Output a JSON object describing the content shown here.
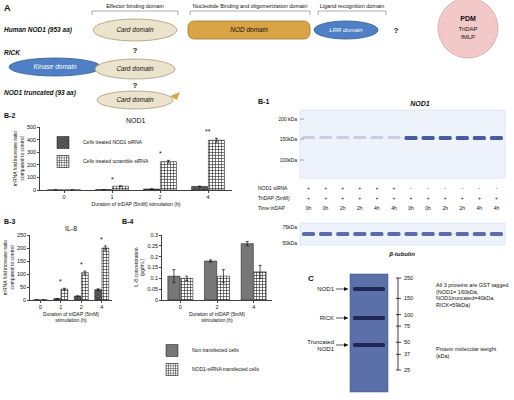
{
  "panel_labels": {
    "a": "A",
    "b1": "B-1",
    "b2": "B-2",
    "b3": "B-3",
    "b4": "B-4",
    "c": "C"
  },
  "diagram": {
    "headers": [
      "Effector binding domain",
      "Nucleotide Binding and oligomerization domain",
      "Ligand recognition domain"
    ],
    "rows": [
      {
        "label": "Human NOD1 (953 aa)",
        "domains": [
          "Card domain",
          "NOD domain",
          "LRR domain"
        ]
      },
      {
        "label": "RICK",
        "domains": [
          "Kinase domain",
          "Card domain"
        ]
      },
      {
        "label": "NOD1 truncated (93 aa)",
        "domains": [
          "Card domain"
        ]
      }
    ],
    "question": "?",
    "ligand": {
      "title": "PDM",
      "items": [
        "TriDAP",
        "fMLP"
      ]
    }
  },
  "blot": {
    "title": "NOD1",
    "markers_top": [
      "200 kDa",
      "150kDa",
      "100kDa"
    ],
    "rows": [
      {
        "label": "NOD1 siRNA",
        "values": [
          "+",
          "+",
          "+",
          "+",
          "+",
          "+",
          "-",
          "-",
          "-",
          "-",
          "-",
          "-"
        ]
      },
      {
        "label": "TriDAP (5mM)",
        "values": [
          "+",
          "+",
          "+",
          "+",
          "+",
          "+",
          "+",
          "+",
          "+",
          "+",
          "+",
          "+"
        ]
      },
      {
        "label": "Time triDAP",
        "values": [
          "0h",
          "0h",
          "2h",
          "2h",
          "4h",
          "4h",
          "0h",
          "0h",
          "2h",
          "2h",
          "4h",
          "4h"
        ]
      }
    ],
    "markers_bottom": [
      "75kDa",
      "50kDa"
    ],
    "loading": "β-tubulin"
  },
  "chart_data": [
    {
      "type": "bar",
      "title": "NOD1",
      "x_label": "Duration of triDAP (5mM) stimulation (h)",
      "y_label": "mRNA fold increase ratio compared to control",
      "categories": [
        "0",
        "1",
        "2",
        "4"
      ],
      "series": [
        {
          "name": "Cells treated NOD1 siRNA",
          "color": "#666666",
          "marker": "x",
          "values": [
            1,
            3,
            8,
            28
          ],
          "errors": [
            0.5,
            1,
            1,
            3
          ]
        },
        {
          "name": "Cells treated scramble siRNA",
          "color": "#ffffff",
          "marker": "+",
          "values": [
            1,
            30,
            225,
            395
          ],
          "errors": [
            0.5,
            3,
            10,
            15
          ]
        }
      ],
      "ylim": [
        0,
        500
      ],
      "yticks": [
        0,
        100,
        200,
        300,
        400,
        500
      ],
      "legend": "upper left",
      "annotations": [
        {
          "category": "1",
          "text": "*"
        },
        {
          "category": "2",
          "text": "*"
        },
        {
          "category": "4",
          "text": "**"
        }
      ]
    },
    {
      "type": "bar",
      "title": "IL-8",
      "x_label": "Duration of triDAP (5mM) stimulation (h)",
      "y_label": "mRNA fold increase ratio compared to control",
      "categories": [
        "0",
        "1",
        "2",
        "4"
      ],
      "series": [
        {
          "color": "#666666",
          "marker": "x",
          "values": [
            0.5,
            5,
            15,
            40
          ],
          "errors": [
            0.2,
            1,
            1,
            3
          ]
        },
        {
          "color": "#ffffff",
          "marker": "+",
          "values": [
            0.5,
            42,
            105,
            200
          ],
          "errors": [
            0.2,
            3,
            6,
            8
          ]
        }
      ],
      "ylim": [
        0,
        250
      ],
      "yticks": [
        0,
        50,
        100,
        150,
        200,
        250
      ],
      "annotations": [
        {
          "category": "1",
          "text": "*"
        },
        {
          "category": "2",
          "text": "*"
        },
        {
          "category": "4",
          "text": "*"
        }
      ]
    },
    {
      "type": "bar",
      "x_label": "Duration of triDAP (5mM) stimulation (h)",
      "y_label": "IL-8 concentration (pg/mL)",
      "categories": [
        "0",
        "2",
        "4"
      ],
      "series": [
        {
          "name": "Non transfected cells",
          "color": "#777777",
          "marker": "solid",
          "values": [
            0.11,
            0.18,
            0.26
          ],
          "errors": [
            0.03,
            0.005,
            0.01
          ]
        },
        {
          "name": "NOD1-siRNA transfected cells",
          "color": "#ffffff",
          "marker": "+",
          "values": [
            0.1,
            0.11,
            0.13
          ],
          "errors": [
            0.01,
            0.03,
            0.03
          ]
        }
      ],
      "ylim": [
        0,
        0.3
      ],
      "yticks": [
        0,
        0.05,
        0.1,
        0.15,
        0.2,
        0.25,
        0.3
      ],
      "legend": "bottom"
    }
  ],
  "gel": {
    "bands": [
      "NOD1",
      "RICK",
      "Truncated NOD1"
    ],
    "ladder": [
      250,
      150,
      100,
      75,
      50,
      37,
      25
    ],
    "ladder_title": "Protein molecular weight (kDa)",
    "note": "All 3 proteins are GST tagged (NOD1= 160kDa, NOD1truncated=40kDa, RICK=59kDa)"
  }
}
